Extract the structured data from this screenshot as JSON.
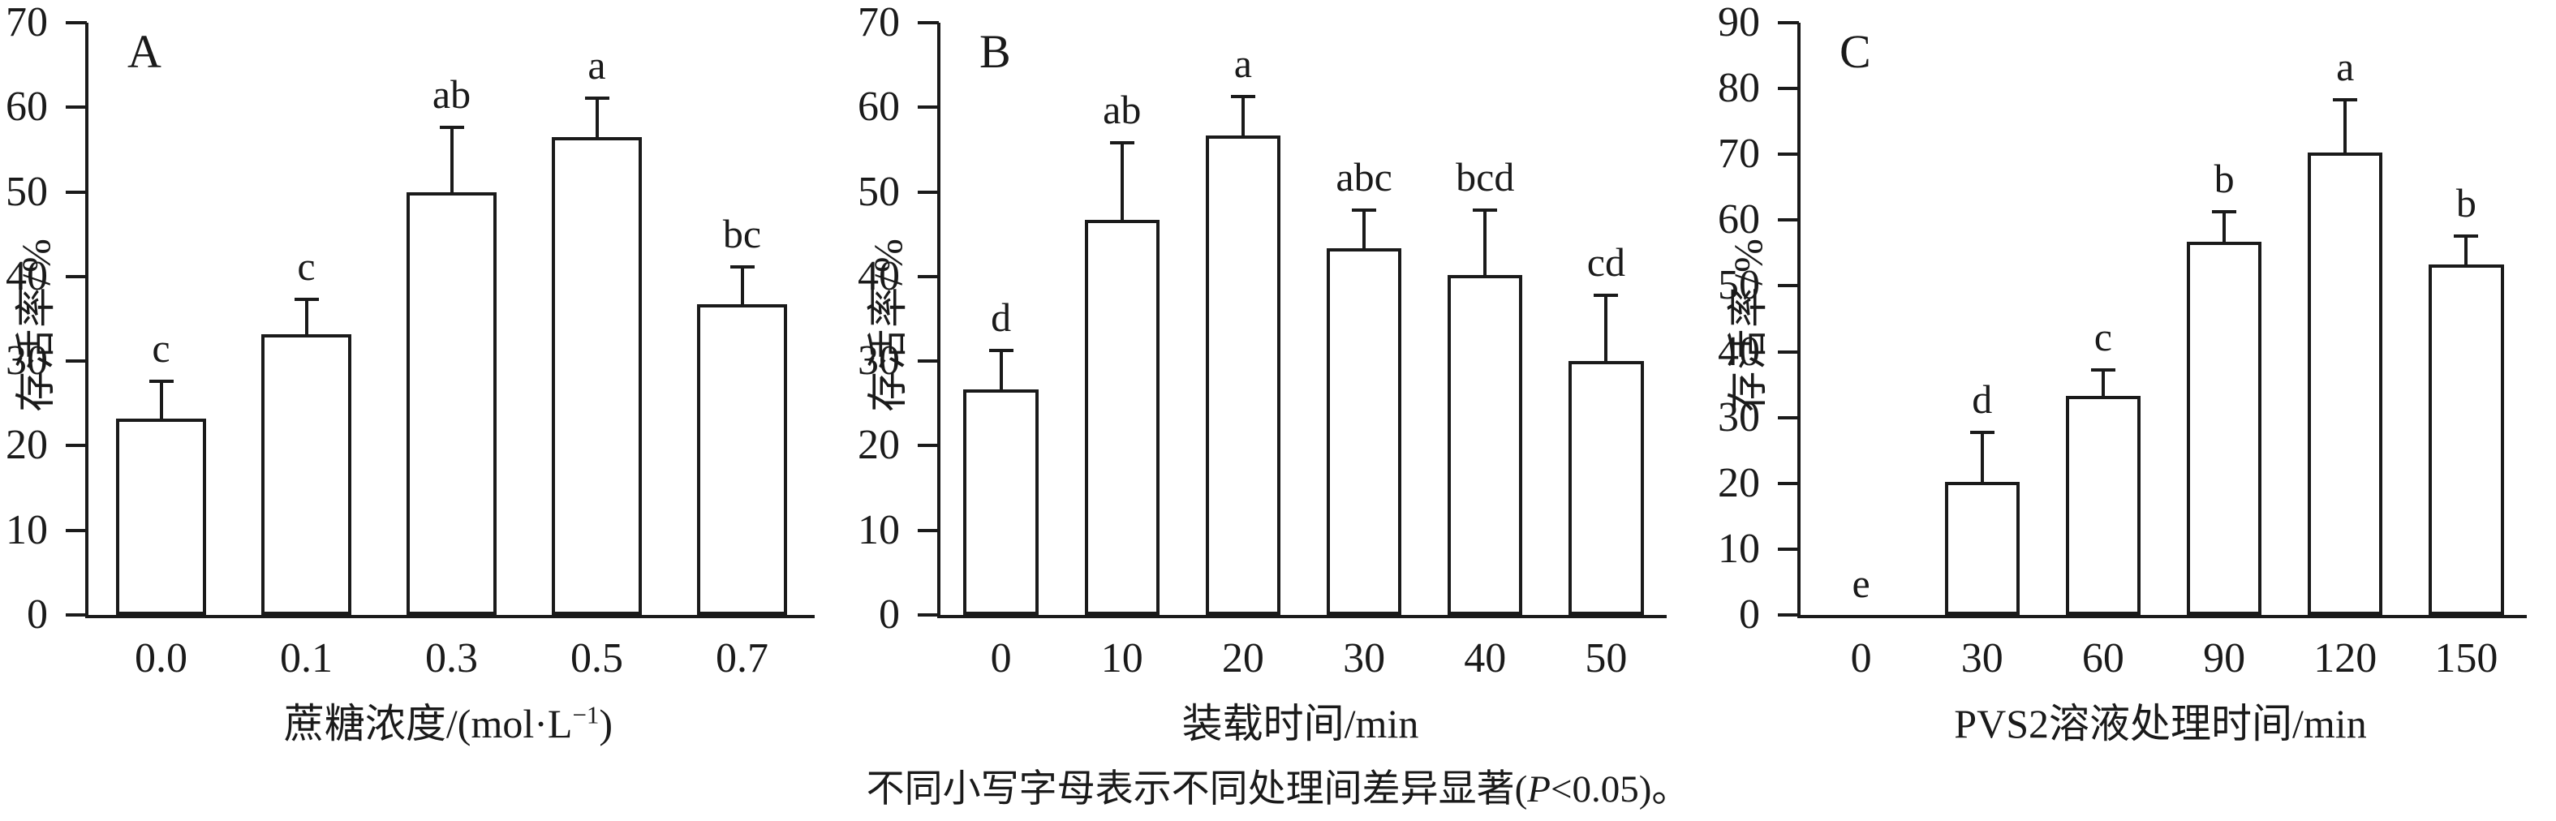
{
  "figure_title": "",
  "ylabel_shared": "存活率/%",
  "caption": {
    "pre": "不同小写字母表示不同处理间差异显著(",
    "p": "P",
    "post": "<0.05)。"
  },
  "colors": {
    "ink": "#1a1a1a",
    "bar_fill": "#ffffff",
    "background": "#ffffff"
  },
  "chart_data": [
    {
      "type": "bar",
      "panel_label": "A",
      "ylabel": "存活率/%",
      "xlabel": "蔗糖浓度/(mol·L⁻¹)",
      "xlabel_parts": [
        {
          "t": "蔗糖浓度/(mol·L"
        },
        {
          "t": "−1",
          "sup": true
        },
        {
          "t": ")"
        }
      ],
      "ylim": [
        0,
        70
      ],
      "ytick_step": 10,
      "grid": false,
      "categories": [
        "0.0",
        "0.1",
        "0.3",
        "0.5",
        "0.7"
      ],
      "values": [
        23,
        33,
        49.8,
        56.3,
        36.5
      ],
      "errors": [
        4.8,
        4.5,
        8,
        5,
        4.8
      ],
      "sig_letters": [
        "c",
        "c",
        "ab",
        "a",
        "bc"
      ]
    },
    {
      "type": "bar",
      "panel_label": "B",
      "ylabel": "存活率/%",
      "xlabel": "装载时间/min",
      "xlabel_parts": [
        {
          "t": "装载时间/min"
        }
      ],
      "ylim": [
        0,
        70
      ],
      "ytick_step": 10,
      "grid": false,
      "categories": [
        "0",
        "10",
        "20",
        "30",
        "40",
        "50"
      ],
      "values": [
        26.5,
        46.5,
        56.5,
        43.2,
        40,
        29.8
      ],
      "errors": [
        5,
        9.5,
        5,
        4.8,
        8,
        8.2
      ],
      "sig_letters": [
        "d",
        "ab",
        "a",
        "abc",
        "bcd",
        "cd"
      ]
    },
    {
      "type": "bar",
      "panel_label": "C",
      "ylabel": "存活率/%",
      "xlabel": "PVS2溶液处理时间/min",
      "xlabel_parts": [
        {
          "t": "PVS2溶液处理时间/min"
        }
      ],
      "ylim": [
        0,
        90
      ],
      "ytick_step": 10,
      "grid": false,
      "categories": [
        "0",
        "30",
        "60",
        "90",
        "120",
        "150"
      ],
      "values": [
        0,
        20,
        33,
        56.5,
        70,
        53
      ],
      "errors": [
        0,
        8,
        4.5,
        5,
        8.5,
        4.8
      ],
      "sig_letters": [
        "e",
        "d",
        "c",
        "b",
        "a",
        "b"
      ]
    }
  ]
}
